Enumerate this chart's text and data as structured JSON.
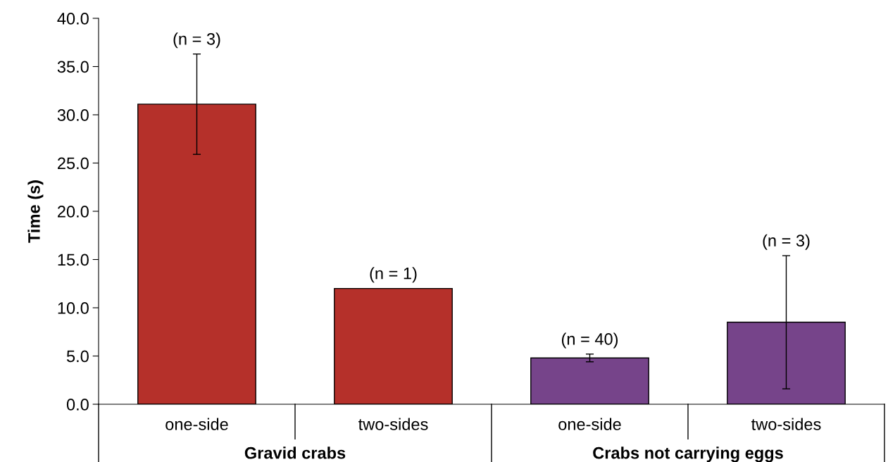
{
  "chart_data": {
    "type": "bar",
    "ylabel": "Time (s)",
    "categories": [
      "one-side",
      "two-sides",
      "one-side",
      "two-sides"
    ],
    "values": [
      31.1,
      12.0,
      4.8,
      8.5
    ],
    "colors": [
      "#b5302a",
      "#b5302a",
      "#76448a",
      "#76448a"
    ],
    "errors": [
      5.2,
      null,
      0.4,
      6.9
    ],
    "ylim": [
      0,
      40
    ],
    "yticks": [
      {
        "value": 0,
        "label": "0.0"
      },
      {
        "value": 5,
        "label": "5.0"
      },
      {
        "value": 10,
        "label": "10.0"
      },
      {
        "value": 15,
        "label": "15.0"
      },
      {
        "value": 20,
        "label": "20.0"
      },
      {
        "value": 25,
        "label": "25.0"
      },
      {
        "value": 30,
        "label": "30.0"
      },
      {
        "value": 35,
        "label": "35.0"
      },
      {
        "value": 40,
        "label": "40.0"
      }
    ],
    "annotations": [
      {
        "text": "(n = 3)",
        "x": "one-side",
        "y": 36.3
      },
      {
        "text": "(n = 1)",
        "x": "two-sides",
        "y": 12.0
      },
      {
        "text": "(n = 40)",
        "y": 5.2
      },
      {
        "text": "(n = 3)",
        "y": 15.4
      },
      "Gravid crabs",
      "Crabs not carrying eggs"
    ],
    "grid": false
  }
}
